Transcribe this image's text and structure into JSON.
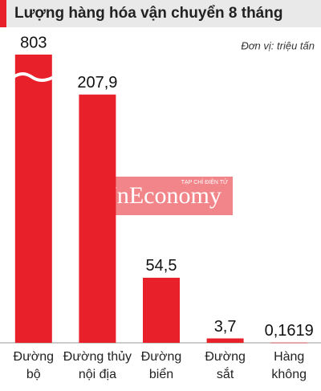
{
  "chart_data": {
    "type": "bar",
    "title": "Lượng hàng hóa vận chuyển 8 tháng",
    "unit": "Đơn vị: triệu tấn",
    "watermark": "VnEconomy",
    "watermark_subtitle": "TẠP CHÍ ĐIỆN TỬ",
    "categories": [
      [
        "Đường",
        "bộ"
      ],
      [
        "Đường thủy",
        "nội địa"
      ],
      [
        "Đường",
        "biển"
      ],
      [
        "Đường",
        "sắt"
      ],
      [
        "Hàng",
        "không"
      ]
    ],
    "values": [
      803,
      207.9,
      54.5,
      3.7,
      0.1619
    ],
    "value_labels": [
      "803",
      "207,9",
      "54,5",
      "3,7",
      "0,1619"
    ],
    "color": "#e8202a",
    "ylim": [
      0,
      240
    ],
    "axis_break": true
  }
}
